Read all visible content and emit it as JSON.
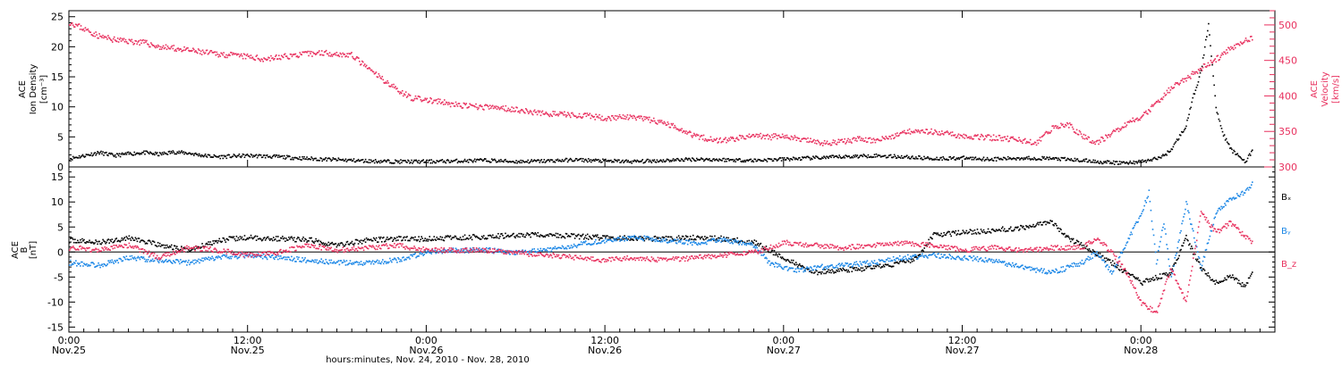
{
  "colors": {
    "black": "#000000",
    "pink": "#e8305e",
    "blue": "#1a86e6"
  },
  "chart_data": [
    {
      "type": "scatter",
      "panel": "top",
      "ylabel_left": [
        "ACE",
        "Ion Density",
        "[cm⁻³]"
      ],
      "ylabel_right": [
        "ACE",
        "Velocity",
        "[km/s]"
      ],
      "ylim_left": [
        0,
        26
      ],
      "yticks_left": [
        "0",
        "5",
        "10",
        "15",
        "20",
        "25"
      ],
      "ylim_right": [
        300,
        520
      ],
      "yticks_right": [
        "300",
        "350",
        "400",
        "450",
        "500"
      ],
      "xlim_hours": [
        0,
        81
      ],
      "series": [
        {
          "axis": "left",
          "color": "#000000",
          "x": [
            0,
            1,
            2,
            3,
            4,
            5,
            6,
            7,
            8,
            9,
            10,
            12,
            14,
            16,
            18,
            20,
            22,
            24,
            26,
            28,
            30,
            32,
            34,
            36,
            38,
            40,
            42,
            44,
            46,
            48,
            50,
            52,
            54,
            56,
            58,
            60,
            62,
            64,
            66,
            68,
            69,
            70,
            71,
            72,
            72.5,
            73,
            73.5,
            74,
            74.5,
            75,
            75.5,
            76,
            76.5,
            77,
            77.5,
            78,
            78.5,
            79,
            79.5
          ],
          "y": [
            1.5,
            2.0,
            2.5,
            2.0,
            2.3,
            2.5,
            2.2,
            2.6,
            2.4,
            2.0,
            1.8,
            2.0,
            1.8,
            1.5,
            1.3,
            1.1,
            1.0,
            1.0,
            1.1,
            1.2,
            1.0,
            1.1,
            1.3,
            1.1,
            1.0,
            1.2,
            1.4,
            1.3,
            1.2,
            1.4,
            1.6,
            1.8,
            2.0,
            1.8,
            1.5,
            1.6,
            1.4,
            1.6,
            1.5,
            1.2,
            1.0,
            0.8,
            0.8,
            1.0,
            1.2,
            1.5,
            2.0,
            3.0,
            5.0,
            7.0,
            12.0,
            16.0,
            24.0,
            10.0,
            5.5,
            3.0,
            2.0,
            1.0,
            3.0
          ]
        },
        {
          "axis": "right",
          "color": "#e8305e",
          "x": [
            0,
            1,
            2,
            3,
            4,
            5,
            6,
            7,
            8,
            9,
            10,
            11,
            12,
            13,
            14,
            15,
            16,
            17,
            18,
            19,
            20,
            21,
            22,
            23,
            24,
            25,
            26,
            27,
            28,
            29,
            30,
            31,
            32,
            33,
            34,
            35,
            36,
            37,
            38,
            39,
            40,
            41,
            42,
            43,
            44,
            45,
            46,
            47,
            48,
            49,
            50,
            51,
            52,
            53,
            54,
            55,
            56,
            57,
            58,
            59,
            60,
            61,
            62,
            63,
            64,
            65,
            66,
            67,
            68,
            69,
            70,
            71,
            72,
            73,
            74,
            75,
            76,
            77,
            78,
            79,
            79.5
          ],
          "y": [
            505,
            495,
            485,
            480,
            478,
            476,
            470,
            468,
            465,
            462,
            460,
            458,
            456,
            453,
            455,
            458,
            460,
            462,
            460,
            458,
            440,
            425,
            410,
            398,
            395,
            392,
            388,
            386,
            385,
            384,
            382,
            378,
            376,
            375,
            374,
            372,
            370,
            371,
            370,
            367,
            362,
            355,
            345,
            340,
            338,
            342,
            345,
            343,
            345,
            340,
            336,
            334,
            337,
            340,
            338,
            342,
            350,
            353,
            350,
            348,
            345,
            343,
            342,
            341,
            338,
            335,
            355,
            362,
            345,
            335,
            348,
            362,
            372,
            390,
            412,
            425,
            440,
            452,
            468,
            480,
            482
          ]
        }
      ]
    },
    {
      "type": "scatter",
      "panel": "bottom",
      "ylabel_left": [
        "ACE",
        "B",
        "[nT]"
      ],
      "ylim": [
        -16,
        17
      ],
      "yticks": [
        "-15",
        "-10",
        "-5",
        "0",
        "5",
        "10",
        "15"
      ],
      "zero_line": true,
      "legend": [
        "Bₓ",
        "Bᵧ",
        "B_z"
      ],
      "series": [
        {
          "name": "Bₓ",
          "color": "#000000",
          "x": [
            0,
            2,
            4,
            6,
            8,
            10,
            12,
            14,
            16,
            18,
            20,
            22,
            24,
            26,
            28,
            30,
            32,
            34,
            36,
            38,
            40,
            42,
            44,
            46,
            48,
            50,
            52,
            54,
            56,
            57,
            58,
            60,
            62,
            64,
            66,
            67,
            68,
            70,
            71,
            72,
            73,
            74,
            75,
            76,
            77,
            78,
            79,
            79.5
          ],
          "y": [
            2.5,
            2.0,
            3.0,
            1.5,
            0.5,
            2.5,
            3.0,
            2.8,
            2.6,
            1.5,
            2.5,
            2.8,
            2.7,
            3.0,
            3.2,
            3.5,
            3.5,
            3.3,
            3.0,
            2.8,
            2.8,
            3.0,
            2.8,
            2.0,
            -1.0,
            -4.0,
            -3.5,
            -3.0,
            -2.0,
            -1.0,
            3.5,
            4.0,
            4.5,
            5.0,
            6.0,
            3.0,
            1.5,
            -2.0,
            -4.0,
            -6.0,
            -5.0,
            -4.0,
            3.0,
            -3.0,
            -6.0,
            -4.5,
            -7.0,
            -3.0
          ]
        },
        {
          "name": "Bᵧ",
          "color": "#1a86e6",
          "x": [
            0,
            2,
            4,
            6,
            8,
            10,
            12,
            14,
            16,
            18,
            20,
            22,
            24,
            26,
            28,
            30,
            32,
            34,
            36,
            38,
            40,
            42,
            44,
            46,
            47,
            48,
            49,
            50,
            52,
            54,
            56,
            58,
            60,
            62,
            64,
            66,
            68,
            69,
            70,
            71,
            72,
            72.5,
            73,
            73.5,
            74,
            75,
            76,
            77,
            78,
            79,
            79.5
          ],
          "y": [
            -2.0,
            -2.5,
            -1.0,
            -1.5,
            -2.0,
            -1.0,
            -0.5,
            -1.0,
            -1.5,
            -2.0,
            -2.0,
            -1.5,
            0.0,
            0.5,
            0.5,
            0.0,
            0.5,
            1.5,
            2.5,
            3.0,
            2.5,
            2.0,
            2.5,
            1.5,
            -2.0,
            -3.0,
            -3.5,
            -3.0,
            -2.5,
            -2.0,
            -1.0,
            -0.5,
            -1.0,
            -1.5,
            -3.0,
            -4.0,
            -2.0,
            0.0,
            -4.0,
            2.0,
            8.0,
            12.0,
            -2.0,
            6.0,
            -5.0,
            10.0,
            -3.0,
            8.0,
            11.0,
            12.0,
            14.0
          ]
        },
        {
          "name": "B_z",
          "color": "#e8305e",
          "x": [
            0,
            2,
            4,
            6,
            8,
            10,
            12,
            14,
            16,
            18,
            20,
            22,
            24,
            26,
            28,
            30,
            32,
            34,
            36,
            38,
            40,
            42,
            44,
            46,
            48,
            50,
            52,
            54,
            56,
            58,
            60,
            62,
            64,
            66,
            68,
            69,
            70,
            71,
            72,
            73,
            74,
            75,
            76,
            77,
            78,
            79,
            79.5
          ],
          "y": [
            1.0,
            0.5,
            1.5,
            -1.0,
            1.0,
            0.5,
            -0.5,
            0.0,
            1.5,
            0.5,
            1.0,
            1.5,
            0.5,
            0.5,
            0.5,
            0.0,
            -0.5,
            -1.0,
            -1.5,
            -1.0,
            -1.5,
            -1.0,
            -0.5,
            0.0,
            2.0,
            1.5,
            1.0,
            1.5,
            2.0,
            1.5,
            0.5,
            1.0,
            0.5,
            1.0,
            1.0,
            3.0,
            0.0,
            -4.0,
            -10.0,
            -12.0,
            -3.0,
            -10.0,
            8.0,
            4.0,
            6.0,
            3.0,
            2.0
          ]
        }
      ]
    }
  ],
  "x_axis": {
    "tick_labels": [
      {
        "time": "0:00",
        "date": "Nov.25"
      },
      {
        "time": "12:00",
        "date": "Nov.25"
      },
      {
        "time": "0:00",
        "date": "Nov.26"
      },
      {
        "time": "12:00",
        "date": "Nov.26"
      },
      {
        "time": "0:00",
        "date": "Nov.27"
      },
      {
        "time": "12:00",
        "date": "Nov.27"
      },
      {
        "time": "0:00",
        "date": "Nov.28"
      }
    ],
    "title": "hours:minutes, Nov. 24, 2010 - Nov. 28, 2010"
  }
}
